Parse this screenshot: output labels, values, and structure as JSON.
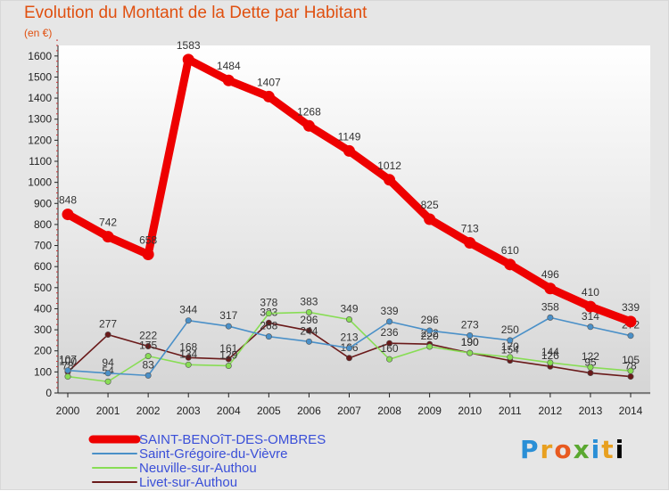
{
  "chart_data": {
    "type": "line",
    "title": "Evolution du Montant de la Dette par Habitant",
    "unit": "(en €)",
    "x": [
      "2000",
      "2001",
      "2002",
      "2003",
      "2004",
      "2005",
      "2006",
      "2007",
      "2008",
      "2009",
      "2010",
      "2011",
      "2012",
      "2013",
      "2014"
    ],
    "ylim": [
      0,
      1650
    ],
    "yticks": [
      "0",
      "100",
      "200",
      "300",
      "400",
      "500",
      "600",
      "700",
      "800",
      "900",
      "1000",
      "1100",
      "1200",
      "1300",
      "1400",
      "1500",
      "1600"
    ],
    "grid": false,
    "legend_position": "bottom-left",
    "series": [
      {
        "name": "SAINT-BENOîT-DES-OMBRES",
        "color": "#ee0000",
        "values": [
          848,
          742,
          658,
          1583,
          1484,
          1407,
          1268,
          1149,
          1012,
          825,
          713,
          610,
          496,
          410,
          339
        ]
      },
      {
        "name": "Saint-Grégoire-du-Vièvre",
        "color": "#4a90c8",
        "values": [
          107,
          94,
          83,
          344,
          317,
          268,
          244,
          213,
          339,
          296,
          273,
          250,
          358,
          314,
          272
        ]
      },
      {
        "name": "Neuville-sur-Authou",
        "color": "#88dd55",
        "values": [
          78,
          54,
          175,
          134,
          129,
          378,
          383,
          349,
          160,
          220,
          190,
          170,
          144,
          122,
          105
        ]
      },
      {
        "name": "Livet-sur-Authou",
        "color": "#6a1a1a",
        "values": [
          100,
          277,
          222,
          168,
          161,
          333,
          296,
          166,
          236,
          232,
          190,
          154,
          126,
          95,
          78
        ]
      }
    ]
  },
  "logo": {
    "text": [
      "P",
      "r",
      "o",
      "x",
      "i",
      "t",
      "i"
    ]
  }
}
